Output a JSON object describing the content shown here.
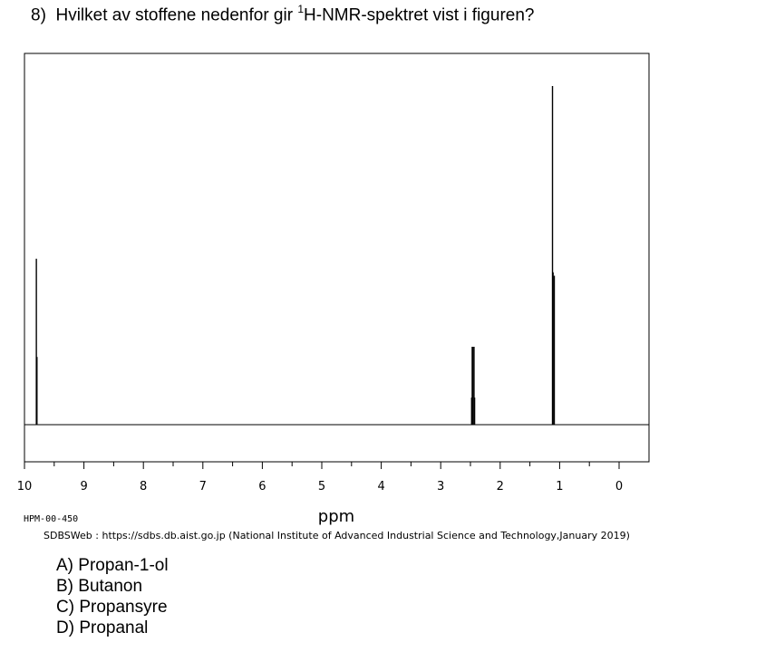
{
  "question": {
    "number": "8)",
    "text_before": "Hvilket av stoffene nedenfor gir ",
    "superscript": "1",
    "text_after": "H-NMR-spektret vist i figuren?"
  },
  "chart_data": {
    "type": "line",
    "xlabel": "ppm",
    "xlim": [
      10,
      0
    ],
    "x_ticks": [
      "10",
      "9",
      "8",
      "7",
      "6",
      "5",
      "4",
      "3",
      "2",
      "1",
      "0"
    ],
    "baseline_intensity": 0,
    "ylim": [
      0,
      1
    ],
    "peaks": [
      {
        "ppm": 9.8,
        "intensity": 0.49
      },
      {
        "ppm": 9.79,
        "intensity": 0.2
      },
      {
        "ppm": 2.48,
        "intensity": 0.08
      },
      {
        "ppm": 2.47,
        "intensity": 0.23
      },
      {
        "ppm": 2.46,
        "intensity": 0.23
      },
      {
        "ppm": 2.44,
        "intensity": 0.23
      },
      {
        "ppm": 2.43,
        "intensity": 0.08
      },
      {
        "ppm": 1.12,
        "intensity": 1.0
      },
      {
        "ppm": 1.11,
        "intensity": 0.45
      },
      {
        "ppm": 1.09,
        "intensity": 0.44
      }
    ]
  },
  "spectrum_code": "HPM-00-450",
  "source_credit": "SDBSWeb : https://sdbs.db.aist.go.jp (National Institute of Advanced Industrial Science and Technology,January 2019)",
  "options": [
    {
      "letter": "A)",
      "text": "Propan-1-ol"
    },
    {
      "letter": "B)",
      "text": "Butanon"
    },
    {
      "letter": "C)",
      "text": "Propansyre"
    },
    {
      "letter": "D)",
      "text": "Propanal"
    }
  ]
}
